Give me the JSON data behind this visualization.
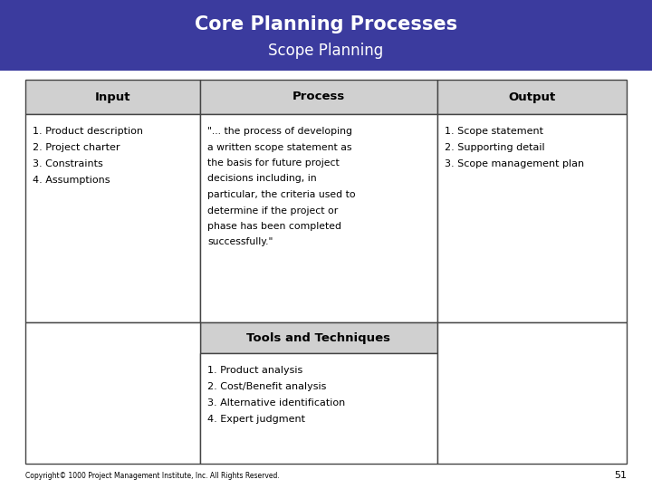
{
  "title_line1": "Core Planning Processes",
  "title_line2": "Scope Planning",
  "header_bg": "#3b3b9e",
  "header_text_color": "#ffffff",
  "cell_header_bg": "#d0d0d0",
  "cell_bg": "#ffffff",
  "border_color": "#444444",
  "col_headers": [
    "Input",
    "Process",
    "Output"
  ],
  "input_items": [
    "1. Product description",
    "2. Project charter",
    "3. Constraints",
    "4. Assumptions"
  ],
  "process_text": "\"... the process of developing\na written scope statement as\nthe basis for future project\ndecisions including, in\nparticular, the criteria used to\ndetermine if the project or\nphase has been completed\nsuccessfully.\"",
  "output_items": [
    "1. Scope statement",
    "2. Supporting detail",
    "3. Scope management plan"
  ],
  "tools_header": "Tools and Techniques",
  "tools_items": [
    "1. Product analysis",
    "2. Cost/Benefit analysis",
    "3. Alternative identification",
    "4. Expert judgment"
  ],
  "footer_text": "Copyright© 1000 Project Management Institute, Inc. All Rights Reserved.",
  "footer_page": "51"
}
